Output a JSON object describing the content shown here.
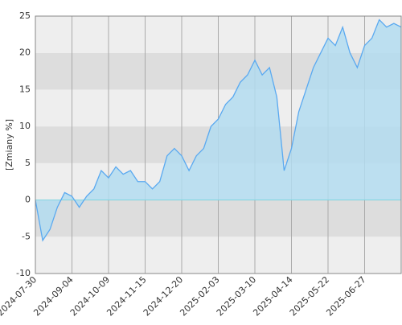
{
  "chart_data": {
    "type": "area",
    "y_label": "[Zmiany %]",
    "categories": [
      "2024-07-30",
      null,
      null,
      null,
      null,
      "2024-09-04",
      null,
      null,
      null,
      null,
      "2024-10-09",
      null,
      null,
      null,
      null,
      "2024-11-15",
      null,
      null,
      null,
      null,
      "2024-12-20",
      null,
      null,
      null,
      null,
      "2025-02-03",
      null,
      null,
      null,
      null,
      "2025-03-10",
      null,
      null,
      null,
      null,
      "2025-04-14",
      null,
      null,
      null,
      null,
      "2025-05-22",
      null,
      null,
      null,
      null,
      "2025-06-27",
      null,
      null,
      null,
      null,
      null
    ],
    "series": [
      {
        "color": "#5aa9f0",
        "fill": "#b3dcf0",
        "values": [
          0,
          -5.5,
          -4,
          -1,
          1,
          0.5,
          -1,
          0.5,
          1.5,
          4,
          3,
          4.5,
          3.5,
          4,
          2.5,
          2.5,
          1.5,
          2.5,
          6,
          7,
          6,
          4,
          6,
          7,
          10,
          11,
          13,
          14,
          16,
          17,
          19,
          17,
          18,
          14,
          4,
          7,
          12,
          15,
          18,
          20,
          22,
          21,
          23.5,
          20,
          18,
          21,
          22,
          24.5,
          23.5,
          24,
          23.5
        ]
      }
    ],
    "ylim": [
      -10,
      25
    ],
    "yticks": [
      -10,
      -5,
      0,
      5,
      10,
      15,
      20,
      25
    ],
    "grid": true,
    "band_colors": [
      "#eeeeee",
      "#dddddd"
    ],
    "grid_color": "#aaaaaa"
  }
}
